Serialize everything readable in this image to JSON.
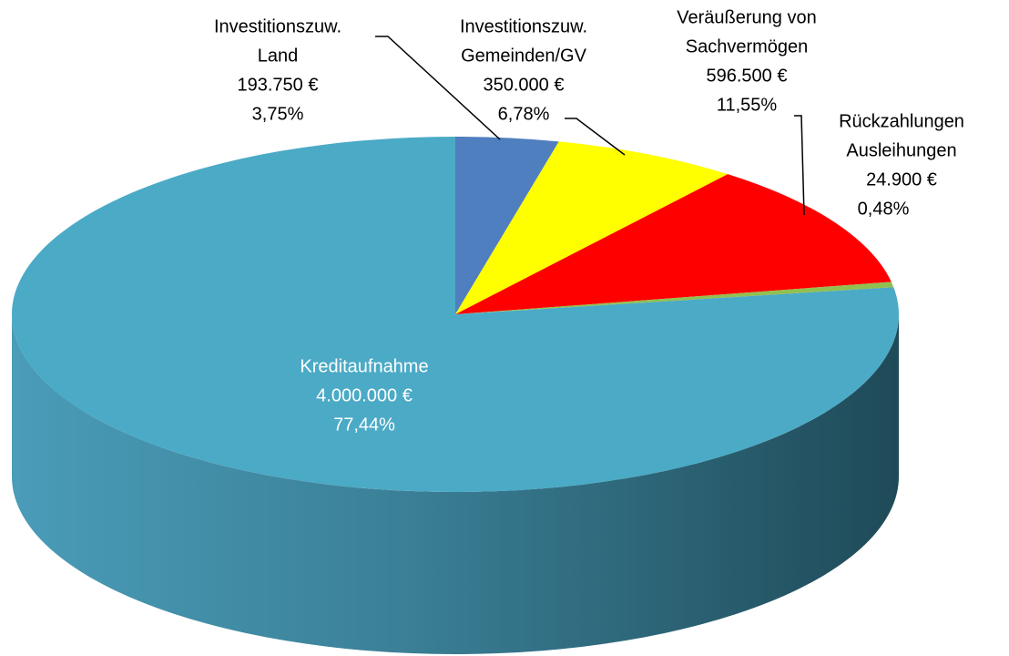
{
  "chart_data": {
    "type": "pie3d",
    "categories": [
      [
        "Investitionszuw.",
        "Land"
      ],
      [
        "Investitionszuw.",
        "Gemeinden/GV"
      ],
      [
        "Veräußerung von",
        "Sachvermögen"
      ],
      [
        "Rückzahlungen",
        "Ausleihungen"
      ],
      [
        "Kreditaufnahme"
      ]
    ],
    "values": [
      193750,
      350000,
      596500,
      24900,
      4000000
    ],
    "value_labels": [
      "193.750 €",
      "350.000 €",
      "596.500 €",
      "24.900 €",
      "4.000.000 €"
    ],
    "percents": [
      3.75,
      6.78,
      11.55,
      0.48,
      77.44
    ],
    "percent_labels": [
      "3,75%",
      "6,78%",
      "11,55%",
      "0,48%",
      "77,44%"
    ],
    "colors": [
      "#4f7fbf",
      "#ffff00",
      "#ff0000",
      "#92c050",
      "#4baac6"
    ]
  }
}
